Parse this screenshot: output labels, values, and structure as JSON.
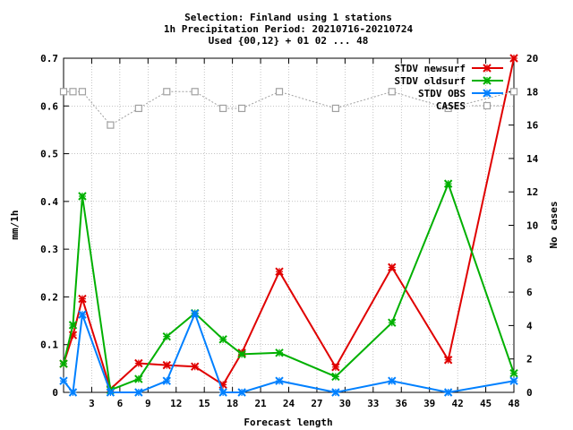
{
  "chart_data": {
    "type": "line",
    "title_lines": [
      "Selection: Finland using     1 stations",
      "1h Precipitation   Period: 20210716-20210724",
      "Used {00,12} + 01 02 ... 48"
    ],
    "xlabel": "Forecast length",
    "ylabel": "mm/1h",
    "y2label": "No cases",
    "xlim": [
      0,
      48
    ],
    "ylim": [
      0,
      0.7
    ],
    "y2lim": [
      0,
      20
    ],
    "xticks": [
      "3",
      "6",
      "9",
      "12",
      "15",
      "18",
      "21",
      "24",
      "27",
      "30",
      "33",
      "36",
      "39",
      "42",
      "45",
      "48"
    ],
    "xtick_values": [
      3,
      6,
      9,
      12,
      15,
      18,
      21,
      24,
      27,
      30,
      33,
      36,
      39,
      42,
      45,
      48
    ],
    "yticks": [
      "0",
      "0.1",
      "0.2",
      "0.3",
      "0.4",
      "0.5",
      "0.6",
      "0.7"
    ],
    "ytick_values": [
      0,
      0.1,
      0.2,
      0.3,
      0.4,
      0.5,
      0.6,
      0.7
    ],
    "y2ticks": [
      "0",
      "2",
      "4",
      "6",
      "8",
      "10",
      "12",
      "14",
      "16",
      "18",
      "20"
    ],
    "y2tick_values": [
      0,
      2,
      4,
      6,
      8,
      10,
      12,
      14,
      16,
      18,
      20
    ],
    "grid": true,
    "legend_position": "top-right",
    "series": [
      {
        "name": "STDV newsurf",
        "color": "#e00000",
        "marker": "x",
        "axis": "left",
        "x": [
          0,
          1,
          2,
          5,
          8,
          11,
          14,
          17,
          19,
          23,
          29,
          35,
          41,
          48
        ],
        "y": [
          0.06,
          0.12,
          0.196,
          0.007,
          0.061,
          0.057,
          0.054,
          0.016,
          0.083,
          0.253,
          0.053,
          0.262,
          0.068,
          0.7
        ]
      },
      {
        "name": "STDV oldsurf",
        "color": "#00b000",
        "marker": "x",
        "axis": "left",
        "x": [
          0,
          1,
          2,
          5,
          8,
          11,
          14,
          17,
          19,
          23,
          29,
          35,
          41,
          48
        ],
        "y": [
          0.06,
          0.141,
          0.411,
          0.005,
          0.028,
          0.117,
          0.166,
          0.111,
          0.08,
          0.083,
          0.033,
          0.146,
          0.437,
          0.04
        ]
      },
      {
        "name": "STDV OBS",
        "color": "#0080ff",
        "marker": "x",
        "axis": "left",
        "x": [
          0,
          1,
          2,
          5,
          8,
          11,
          14,
          17,
          19,
          23,
          29,
          35,
          41,
          48
        ],
        "y": [
          0.024,
          0,
          0.163,
          0,
          0,
          0.024,
          0.165,
          0,
          0,
          0.024,
          0,
          0.024,
          0,
          0.024
        ]
      },
      {
        "name": "CASES",
        "color": "#a0a0a0",
        "marker": "square",
        "dashed": true,
        "axis": "right",
        "x": [
          0,
          1,
          2,
          5,
          8,
          11,
          14,
          17,
          19,
          23,
          29,
          35,
          41,
          48
        ],
        "y": [
          18,
          18,
          18,
          16,
          17,
          18,
          18,
          17,
          17,
          18,
          17,
          18,
          17,
          18
        ]
      }
    ]
  }
}
